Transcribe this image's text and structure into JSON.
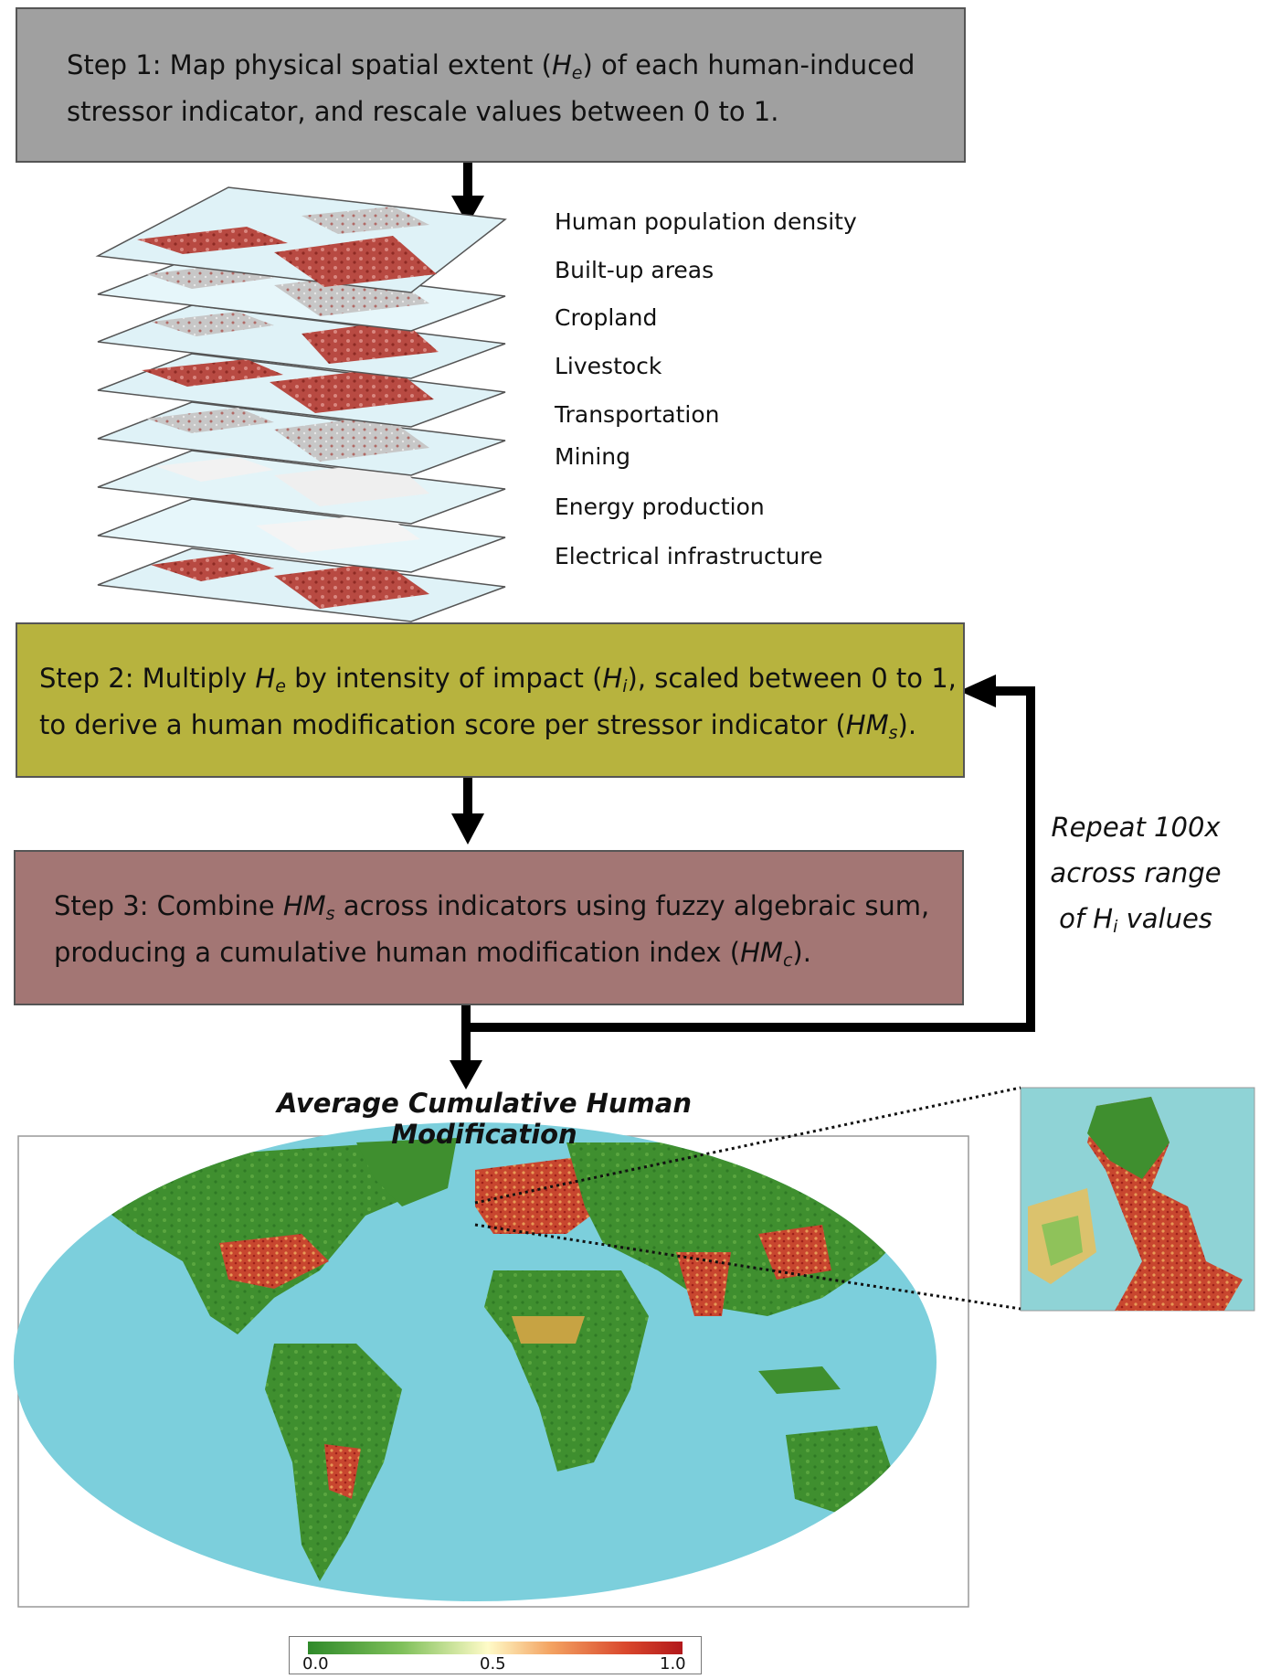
{
  "step1": {
    "line1_pre": "Step 1: Map physical spatial extent (",
    "var": "H",
    "sub": "e",
    "line1_post": ") of each human-induced",
    "line2": "stressor indicator, and rescale values between 0 to 1."
  },
  "layers": [
    "Human population density",
    "Built-up areas",
    "Cropland",
    "Livestock",
    "Transportation",
    "Mining",
    "Energy production",
    "Electrical infrastructure"
  ],
  "step2": {
    "line1_a": "Step 2: Multiply ",
    "var1": "H",
    "sub1": "e",
    "line1_b": " by intensity of impact (",
    "var2": "H",
    "sub2": "i",
    "line1_c": "), scaled between 0 to 1,",
    "line2_a": "to derive a human modification score per stressor indicator (",
    "var3": "HM",
    "sub3": "s",
    "line2_b": ")."
  },
  "step3": {
    "line1_a": "Step 3: Combine ",
    "var1": "HM",
    "sub1": "s",
    "line1_b": " across indicators using fuzzy algebraic sum,",
    "line2_a": "producing a cumulative human modification index (",
    "var2": "HM",
    "sub2": "c",
    "line2_b": ")."
  },
  "repeat": {
    "line1": "Repeat 100x",
    "line2": "across range",
    "line3_a": "of H",
    "sub": "i",
    "line3_b": " values"
  },
  "map_title": "Average Cumulative Human Modification",
  "legend": {
    "min": "0.0",
    "mid": "0.5",
    "max": "1.0",
    "colors": [
      "#2f8a2a",
      "#7fc05a",
      "#fffbc8",
      "#f3a261",
      "#d9472c",
      "#b2181b"
    ]
  },
  "colors": {
    "step1_bg": "#a0a0a0",
    "step2_bg": "#b7b33e",
    "step3_bg": "#a37674",
    "ocean": "#7ccfdc",
    "land_low": "#3f8f2f",
    "land_high": "#c0392b"
  }
}
